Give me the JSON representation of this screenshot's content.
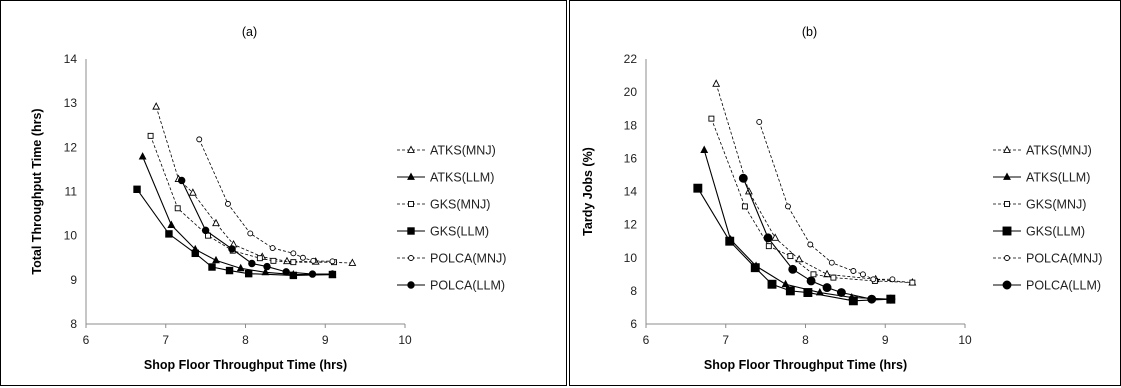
{
  "chart_data": [
    {
      "type": "line",
      "title": "(a)",
      "xlabel": "Shop Floor Throughput Time (hrs)",
      "ylabel": "Total Throughput Time (hrs)",
      "xlim": [
        6,
        10
      ],
      "ylim": [
        8,
        14
      ],
      "xticks": [
        "6",
        "7",
        "8",
        "9",
        "10"
      ],
      "yticks": [
        "8",
        "9",
        "10",
        "11",
        "12",
        "13",
        "14"
      ],
      "grid": false,
      "legend_position": "right",
      "series": [
        {
          "name": "ATKS(MNJ)",
          "style": "dashed",
          "marker": "triangle-open",
          "x": [
            6.88,
            7.16,
            7.34,
            7.63,
            7.85,
            8.21,
            8.52,
            8.88,
            9.34
          ],
          "y": [
            12.92,
            11.28,
            10.97,
            10.28,
            9.8,
            9.52,
            9.42,
            9.41,
            9.38
          ]
        },
        {
          "name": "ATKS(LLM)",
          "style": "solid",
          "marker": "triangle-filled",
          "x": [
            6.71,
            7.07,
            7.37,
            7.63,
            7.94,
            8.25,
            8.6,
            9.09
          ],
          "y": [
            11.79,
            10.24,
            9.69,
            9.44,
            9.26,
            9.17,
            9.12,
            9.12
          ]
        },
        {
          "name": "GKS(MNJ)",
          "style": "dashed",
          "marker": "square-open",
          "x": [
            6.81,
            7.15,
            7.53,
            7.84,
            8.18,
            8.35,
            8.6,
            9.11
          ],
          "y": [
            12.26,
            10.62,
            10.0,
            9.66,
            9.49,
            9.43,
            9.4,
            9.4
          ]
        },
        {
          "name": "GKS(LLM)",
          "style": "solid",
          "marker": "square-filled",
          "x": [
            6.64,
            7.04,
            7.37,
            7.58,
            7.8,
            8.04,
            8.6,
            9.09
          ],
          "y": [
            11.05,
            10.04,
            9.6,
            9.29,
            9.21,
            9.14,
            9.1,
            9.12
          ]
        },
        {
          "name": "POLCA(MNJ)",
          "style": "dashed",
          "marker": "circle-open",
          "x": [
            7.42,
            7.78,
            8.06,
            8.34,
            8.6,
            8.72,
            8.85,
            9.09
          ],
          "y": [
            12.18,
            10.72,
            10.05,
            9.72,
            9.6,
            9.5,
            9.43,
            9.42
          ]
        },
        {
          "name": "POLCA(LLM)",
          "style": "solid",
          "marker": "circle-filled",
          "x": [
            7.2,
            7.5,
            7.83,
            8.08,
            8.27,
            8.51,
            8.84,
            9.09
          ],
          "y": [
            11.25,
            10.12,
            9.7,
            9.37,
            9.3,
            9.18,
            9.13,
            9.13
          ]
        }
      ]
    },
    {
      "type": "line",
      "title": "(b)",
      "xlabel": "Shop Floor Throughput Time (hrs)",
      "ylabel": "Tardy Jobs (%)",
      "xlim": [
        6,
        10
      ],
      "ylim": [
        6,
        22
      ],
      "xticks": [
        "6",
        "7",
        "8",
        "9",
        "10"
      ],
      "yticks": [
        "6",
        "8",
        "10",
        "12",
        "14",
        "16",
        "18",
        "20",
        "22"
      ],
      "grid": false,
      "legend_position": "right",
      "series": [
        {
          "name": "ATKS(MNJ)",
          "style": "dashed",
          "marker": "triangle-open",
          "x": [
            6.88,
            7.29,
            7.62,
            7.92,
            8.27,
            8.88,
            9.34
          ],
          "y": [
            20.5,
            14.0,
            11.2,
            9.9,
            9.0,
            8.7,
            8.5
          ]
        },
        {
          "name": "ATKS(LLM)",
          "style": "solid",
          "marker": "triangle-filled",
          "x": [
            6.73,
            7.06,
            7.38,
            7.75,
            8.18,
            8.58,
            9.07
          ],
          "y": [
            16.5,
            11.1,
            9.5,
            8.4,
            7.9,
            7.6,
            7.5
          ]
        },
        {
          "name": "GKS(MNJ)",
          "style": "dashed",
          "marker": "square-open",
          "x": [
            6.82,
            7.24,
            7.54,
            7.81,
            8.1,
            8.35,
            8.87,
            9.34
          ],
          "y": [
            18.4,
            13.1,
            10.7,
            10.1,
            9.0,
            8.8,
            8.6,
            8.5
          ]
        },
        {
          "name": "GKS(LLM)",
          "style": "solid",
          "marker": "square-filled",
          "x": [
            6.65,
            7.05,
            7.37,
            7.58,
            7.81,
            8.03,
            8.6,
            9.07
          ],
          "y": [
            14.2,
            11.0,
            9.4,
            8.4,
            8.0,
            7.9,
            7.4,
            7.5
          ]
        },
        {
          "name": "POLCA(MNJ)",
          "style": "dashed",
          "marker": "circle-open",
          "x": [
            7.42,
            7.78,
            8.06,
            8.33,
            8.6,
            8.72,
            8.85,
            9.09
          ],
          "y": [
            18.2,
            13.1,
            10.8,
            9.7,
            9.2,
            9.0,
            8.7,
            8.7
          ]
        },
        {
          "name": "POLCA(LLM)",
          "style": "solid",
          "marker": "circle-filled",
          "x": [
            7.22,
            7.53,
            7.84,
            8.07,
            8.27,
            8.45,
            8.83,
            9.07
          ],
          "y": [
            14.8,
            11.2,
            9.3,
            8.6,
            8.2,
            7.9,
            7.5,
            7.5
          ]
        }
      ]
    }
  ]
}
